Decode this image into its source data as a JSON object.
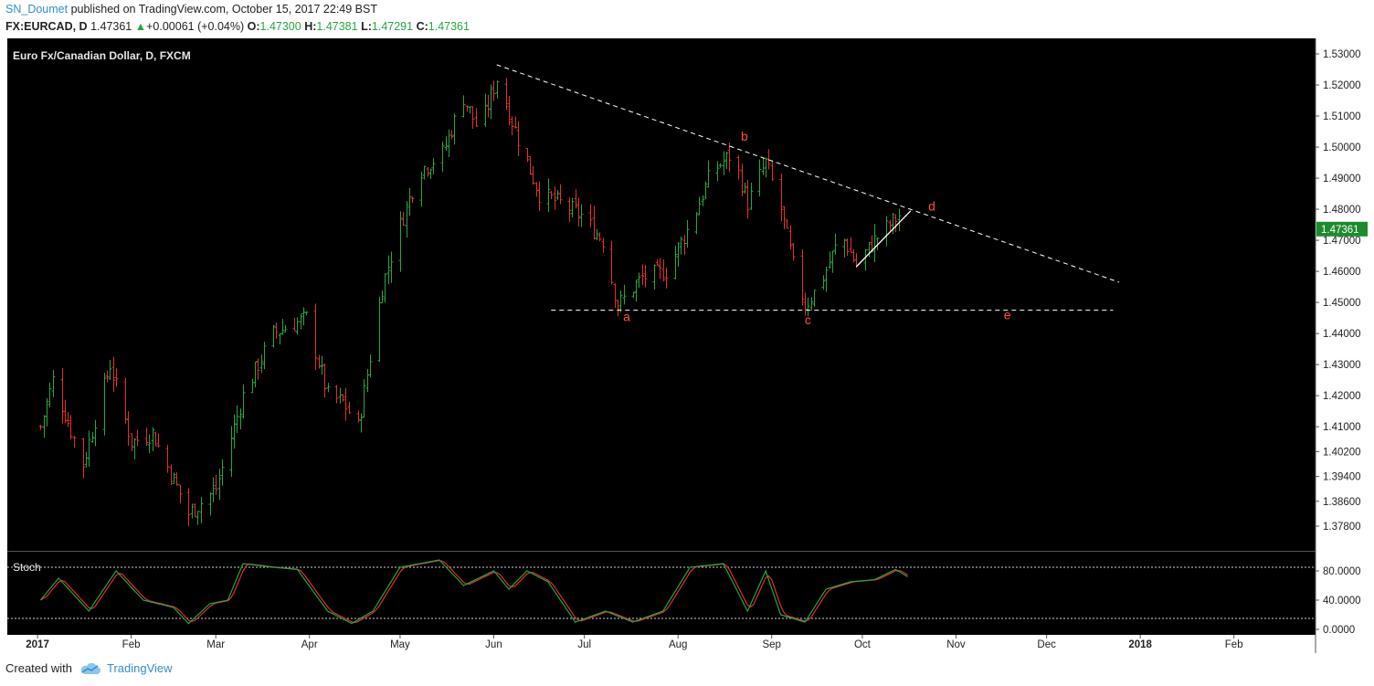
{
  "header": {
    "publisher": "SN_Doumet",
    "published_text": "published on TradingView.com, October 15, 2017 22:49 BST",
    "symbol": "FX:EURCAD, D",
    "last": "1.47361",
    "change": "+0.00061 (+0.04%)",
    "open_label": "O:",
    "open": "1.47300",
    "high_label": "H:",
    "high": "1.47381",
    "low_label": "L:",
    "low": "1.47291",
    "close_label": "C:",
    "close": "1.47361"
  },
  "footer": {
    "created_with": "Created with",
    "brand": "TradingView"
  },
  "colors": {
    "background": "#000000",
    "up": "#26a641",
    "down": "#e0312f",
    "stoch_k": "#26a641",
    "stoch_d": "#e0312f",
    "label": "#ff4d4d",
    "price_badge": "#1e8a2e"
  },
  "chart_data": {
    "type": "ohlc",
    "title": "Euro Fx/Canadian Dollar, D, FXCM",
    "last_price_label": "1.47361",
    "y_ticks": [
      "1.53000",
      "1.52000",
      "1.51000",
      "1.50000",
      "1.49000",
      "1.48000",
      "1.47000",
      "1.46000",
      "1.45000",
      "1.44000",
      "1.43000",
      "1.42000",
      "1.41000",
      "1.40200",
      "1.39400",
      "1.38600",
      "1.37800"
    ],
    "ylim": [
      1.372,
      1.532
    ],
    "x_ticks": [
      "2017",
      "Feb",
      "Mar",
      "Apr",
      "May",
      "Jun",
      "Jul",
      "Aug",
      "Sep",
      "Oct",
      "Nov",
      "Dec",
      "2018",
      "Feb"
    ],
    "price_path": [
      {
        "d": "2017-01-02",
        "v": 1.41
      },
      {
        "d": "2017-01-06",
        "v": 1.425
      },
      {
        "d": "2017-01-16",
        "v": 1.398
      },
      {
        "d": "2017-01-25",
        "v": 1.43
      },
      {
        "d": "2017-02-01",
        "v": 1.405
      },
      {
        "d": "2017-02-08",
        "v": 1.408
      },
      {
        "d": "2017-02-20",
        "v": 1.382
      },
      {
        "d": "2017-03-01",
        "v": 1.39
      },
      {
        "d": "2017-03-10",
        "v": 1.42
      },
      {
        "d": "2017-03-20",
        "v": 1.44
      },
      {
        "d": "2017-03-31",
        "v": 1.445
      },
      {
        "d": "2017-04-07",
        "v": 1.42
      },
      {
        "d": "2017-04-12",
        "v": 1.418
      },
      {
        "d": "2017-04-17",
        "v": 1.41
      },
      {
        "d": "2017-04-25",
        "v": 1.455
      },
      {
        "d": "2017-05-01",
        "v": 1.475
      },
      {
        "d": "2017-05-07",
        "v": 1.492
      },
      {
        "d": "2017-05-15",
        "v": 1.498
      },
      {
        "d": "2017-05-22",
        "v": 1.516
      },
      {
        "d": "2017-05-27",
        "v": 1.505
      },
      {
        "d": "2017-06-02",
        "v": 1.522
      },
      {
        "d": "2017-06-10",
        "v": 1.5
      },
      {
        "d": "2017-06-16",
        "v": 1.485
      },
      {
        "d": "2017-06-23",
        "v": 1.482
      },
      {
        "d": "2017-06-30",
        "v": 1.478
      },
      {
        "d": "2017-07-07",
        "v": 1.47
      },
      {
        "d": "2017-07-12",
        "v": 1.449
      },
      {
        "d": "2017-07-20",
        "v": 1.458
      },
      {
        "d": "2017-07-28",
        "v": 1.46
      },
      {
        "d": "2017-08-05",
        "v": 1.475
      },
      {
        "d": "2017-08-12",
        "v": 1.492
      },
      {
        "d": "2017-08-19",
        "v": 1.498
      },
      {
        "d": "2017-08-24",
        "v": 1.482
      },
      {
        "d": "2017-08-30",
        "v": 1.495
      },
      {
        "d": "2017-09-04",
        "v": 1.48
      },
      {
        "d": "2017-09-08",
        "v": 1.462
      },
      {
        "d": "2017-09-12",
        "v": 1.449
      },
      {
        "d": "2017-09-17",
        "v": 1.456
      },
      {
        "d": "2017-09-24",
        "v": 1.472
      },
      {
        "d": "2017-09-29",
        "v": 1.462
      },
      {
        "d": "2017-10-05",
        "v": 1.47
      },
      {
        "d": "2017-10-13",
        "v": 1.478
      }
    ],
    "stochastic": {
      "label": "Stoch",
      "ylim": [
        0,
        100
      ],
      "y_ticks": [
        "80.0000",
        "40.0000",
        "0.0000"
      ],
      "bands": [
        85,
        15
      ],
      "path": [
        {
          "d": "2017-01-02",
          "v": 40
        },
        {
          "d": "2017-01-08",
          "v": 70
        },
        {
          "d": "2017-01-18",
          "v": 25
        },
        {
          "d": "2017-01-27",
          "v": 80
        },
        {
          "d": "2017-02-05",
          "v": 40
        },
        {
          "d": "2017-02-15",
          "v": 30
        },
        {
          "d": "2017-02-20",
          "v": 8
        },
        {
          "d": "2017-02-27",
          "v": 35
        },
        {
          "d": "2017-03-05",
          "v": 40
        },
        {
          "d": "2017-03-10",
          "v": 90
        },
        {
          "d": "2017-03-20",
          "v": 85
        },
        {
          "d": "2017-03-28",
          "v": 82
        },
        {
          "d": "2017-04-07",
          "v": 25
        },
        {
          "d": "2017-04-15",
          "v": 8
        },
        {
          "d": "2017-04-22",
          "v": 25
        },
        {
          "d": "2017-05-01",
          "v": 85
        },
        {
          "d": "2017-05-14",
          "v": 95
        },
        {
          "d": "2017-05-22",
          "v": 60
        },
        {
          "d": "2017-06-01",
          "v": 80
        },
        {
          "d": "2017-06-06",
          "v": 55
        },
        {
          "d": "2017-06-12",
          "v": 80
        },
        {
          "d": "2017-06-19",
          "v": 65
        },
        {
          "d": "2017-06-28",
          "v": 10
        },
        {
          "d": "2017-07-08",
          "v": 25
        },
        {
          "d": "2017-07-17",
          "v": 10
        },
        {
          "d": "2017-07-27",
          "v": 25
        },
        {
          "d": "2017-08-05",
          "v": 85
        },
        {
          "d": "2017-08-16",
          "v": 90
        },
        {
          "d": "2017-08-24",
          "v": 25
        },
        {
          "d": "2017-08-30",
          "v": 80
        },
        {
          "d": "2017-09-04",
          "v": 20
        },
        {
          "d": "2017-09-12",
          "v": 10
        },
        {
          "d": "2017-09-19",
          "v": 55
        },
        {
          "d": "2017-09-27",
          "v": 65
        },
        {
          "d": "2017-10-05",
          "v": 68
        },
        {
          "d": "2017-10-12",
          "v": 82
        },
        {
          "d": "2017-10-16",
          "v": 72
        }
      ]
    },
    "annotations": {
      "labels": [
        {
          "text": "a",
          "d": "2017-07-15",
          "v": 1.4455
        },
        {
          "text": "b",
          "d": "2017-08-23",
          "v": 1.5035
        },
        {
          "text": "c",
          "d": "2017-09-13",
          "v": 1.4445
        },
        {
          "text": "d",
          "d": "2017-10-24",
          "v": 1.481
        },
        {
          "text": "e",
          "d": "2017-11-18",
          "v": 1.446
        }
      ],
      "resistance_line": {
        "start": {
          "d": "2017-06-02",
          "v": 1.5265
        },
        "end": {
          "d": "2017-12-25",
          "v": 1.4565
        }
      },
      "support_line": {
        "start": {
          "d": "2017-06-20",
          "v": 1.4475
        },
        "end": {
          "d": "2017-12-23",
          "v": 1.4475
        }
      },
      "wedge_line": {
        "start": {
          "d": "2017-09-29",
          "v": 1.4615
        },
        "end": {
          "d": "2017-10-17",
          "v": 1.4795
        }
      }
    }
  }
}
